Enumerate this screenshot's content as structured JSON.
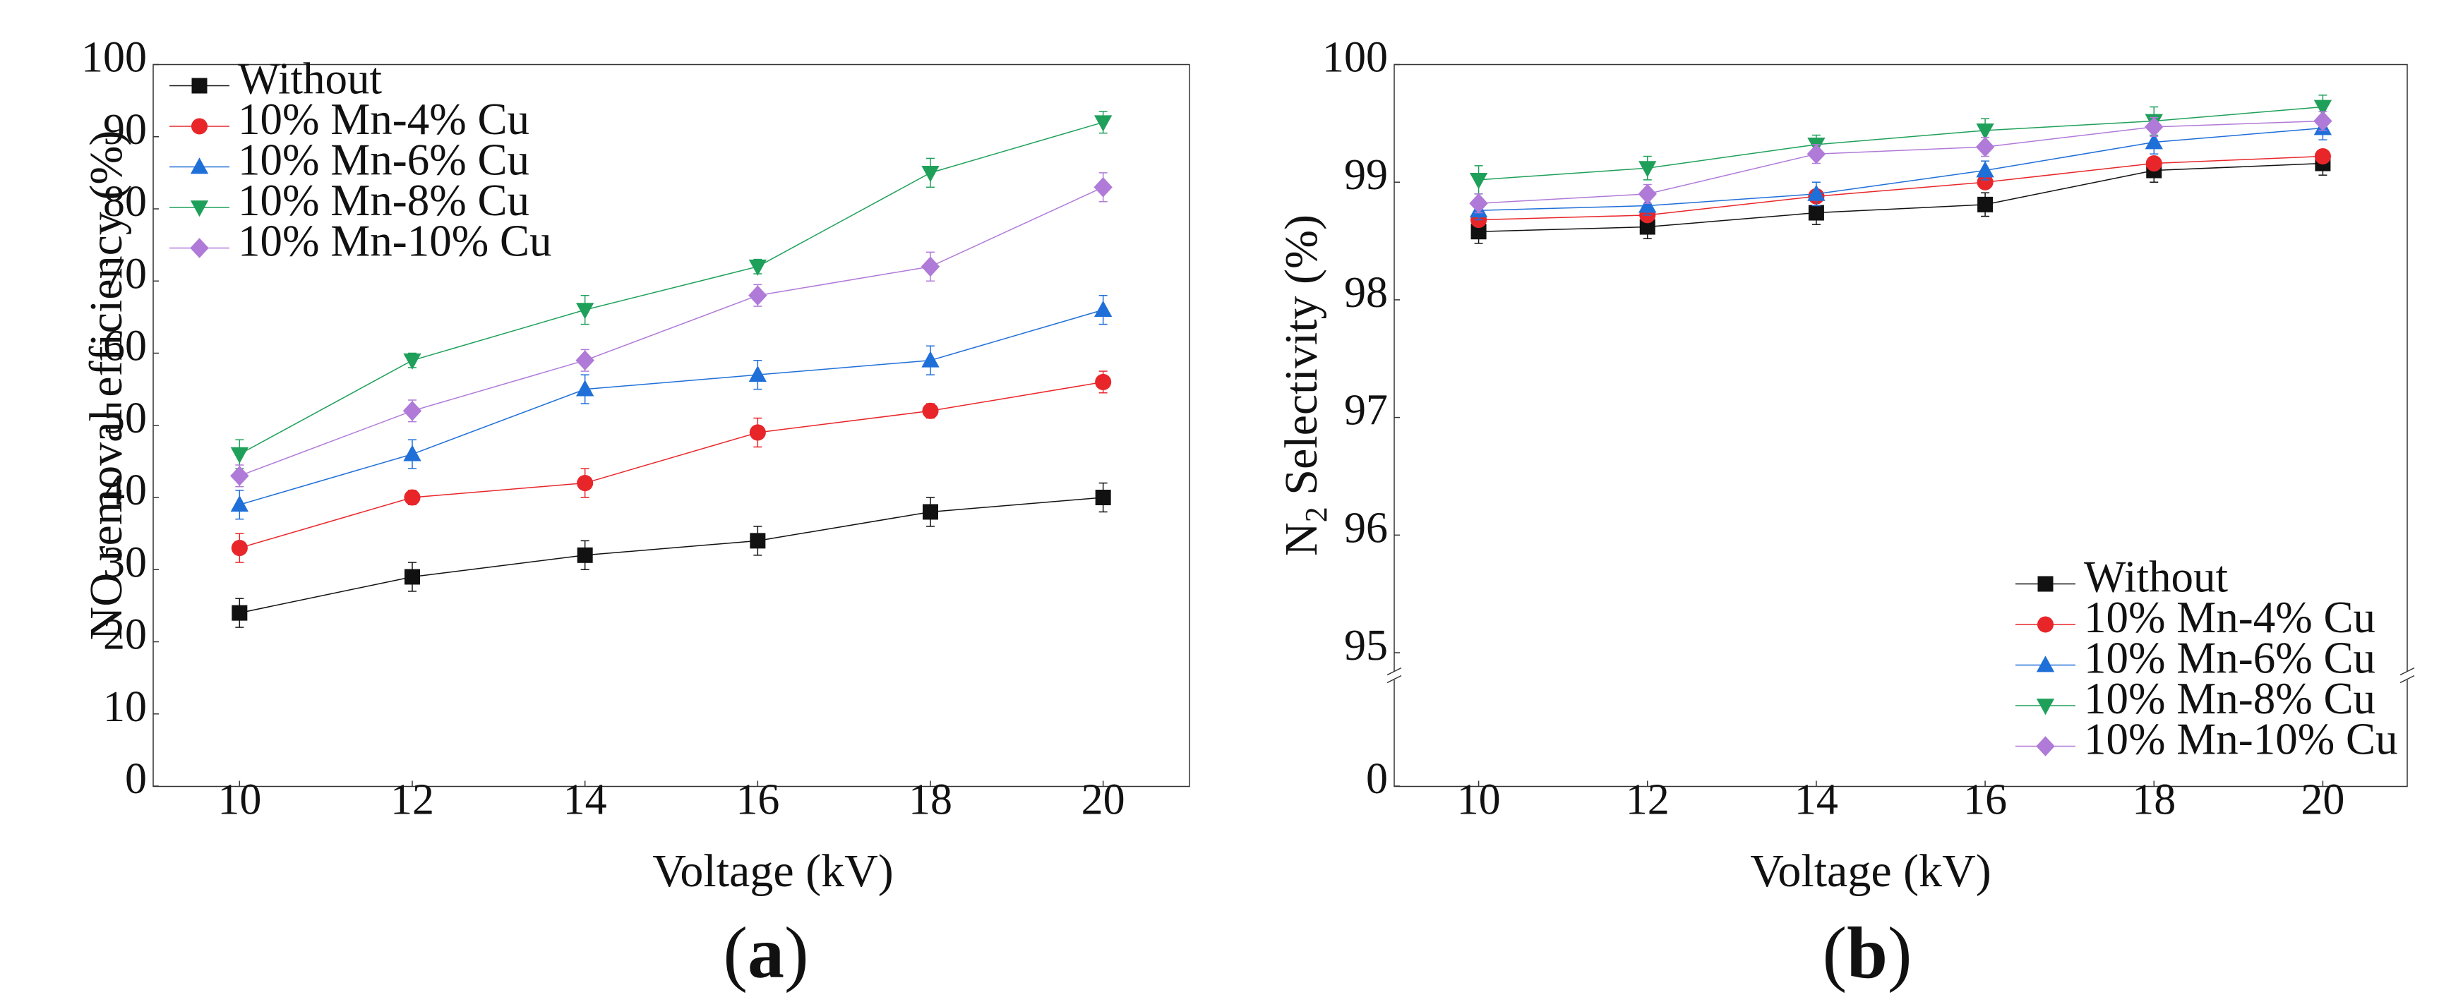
{
  "chart_data": [
    {
      "panel": "(a)",
      "panel_parts": {
        "open": "(",
        "letter": "a",
        "close": ")"
      },
      "type": "line",
      "xlabel": "Voltage (kV)",
      "ylabel": "NO removal efficiency (%)",
      "xlim": [
        9,
        21
      ],
      "ylim": [
        0,
        100
      ],
      "xticks": [
        10,
        12,
        14,
        16,
        18,
        20
      ],
      "yticks": [
        0,
        10,
        20,
        30,
        40,
        50,
        60,
        70,
        80,
        90,
        100
      ],
      "legend_position": "top-left",
      "x": [
        10,
        12,
        14,
        16,
        18,
        20
      ],
      "series": [
        {
          "name": "Without",
          "color": "#111111",
          "marker": "square",
          "values": [
            24,
            29,
            32,
            34,
            38,
            40
          ],
          "errors": [
            2,
            2,
            2,
            2,
            2,
            2
          ]
        },
        {
          "name": "10% Mn-4% Cu",
          "color": "#e8262a",
          "marker": "circle",
          "values": [
            33,
            40,
            42,
            49,
            52,
            56
          ],
          "errors": [
            2,
            1,
            2,
            2,
            1,
            1.5
          ]
        },
        {
          "name": "10% Mn-6% Cu",
          "color": "#1f6fd8",
          "marker": "triangle-up",
          "values": [
            39,
            46,
            55,
            57,
            59,
            66
          ],
          "errors": [
            2,
            2,
            2,
            2,
            2,
            2
          ]
        },
        {
          "name": "10% Mn-8% Cu",
          "color": "#1fa05a",
          "marker": "triangle-down",
          "values": [
            46,
            59,
            66,
            72,
            85,
            92
          ],
          "errors": [
            2,
            1,
            2,
            1,
            2,
            1.5
          ]
        },
        {
          "name": "10% Mn-10% Cu",
          "color": "#b07ad8",
          "marker": "diamond",
          "values": [
            43,
            52,
            59,
            68,
            72,
            83
          ],
          "errors": [
            1.5,
            1.5,
            1.5,
            1.5,
            2,
            2
          ]
        }
      ]
    },
    {
      "panel": "(b)",
      "panel_parts": {
        "open": "(",
        "letter": "b",
        "close": ")"
      },
      "type": "line",
      "xlabel": "Voltage (kV)",
      "ylabel_main": "N",
      "ylabel_sub": "2",
      "ylabel_rest": " Selectivity (%)",
      "xlim": [
        9,
        21
      ],
      "ylim": [
        0,
        100
      ],
      "axis_break": [
        1,
        95
      ],
      "xticks": [
        10,
        12,
        14,
        16,
        18,
        20
      ],
      "yticks": [
        0,
        95,
        96,
        97,
        98,
        99,
        100
      ],
      "legend_position": "bottom-right",
      "x": [
        10,
        12,
        14,
        16,
        18,
        20
      ],
      "series": [
        {
          "name": "Without",
          "color": "#111111",
          "marker": "square",
          "values": [
            98.58,
            98.62,
            98.74,
            98.81,
            99.1,
            99.16
          ],
          "errors": [
            0.1,
            0.1,
            0.1,
            0.1,
            0.1,
            0.1
          ]
        },
        {
          "name": "10% Mn-4% Cu",
          "color": "#e8262a",
          "marker": "circle",
          "values": [
            98.68,
            98.72,
            98.88,
            99.0,
            99.16,
            99.22
          ],
          "errors": [
            0.05,
            0.05,
            0.05,
            0.05,
            0.05,
            0.05
          ]
        },
        {
          "name": "10% Mn-6% Cu",
          "color": "#1f6fd8",
          "marker": "triangle-up",
          "values": [
            98.76,
            98.8,
            98.9,
            99.1,
            99.34,
            99.46
          ],
          "errors": [
            0.08,
            0.08,
            0.1,
            0.08,
            0.1,
            0.1
          ]
        },
        {
          "name": "10% Mn-8% Cu",
          "color": "#1fa05a",
          "marker": "triangle-down",
          "values": [
            99.02,
            99.12,
            99.32,
            99.44,
            99.52,
            99.64
          ],
          "errors": [
            0.12,
            0.1,
            0.08,
            0.1,
            0.12,
            0.1
          ]
        },
        {
          "name": "10% Mn-10% Cu",
          "color": "#b07ad8",
          "marker": "diamond",
          "values": [
            98.82,
            98.9,
            99.24,
            99.3,
            99.47,
            99.52
          ],
          "errors": [
            0.08,
            0.08,
            0.08,
            0.08,
            0.08,
            0.08
          ]
        }
      ]
    }
  ]
}
